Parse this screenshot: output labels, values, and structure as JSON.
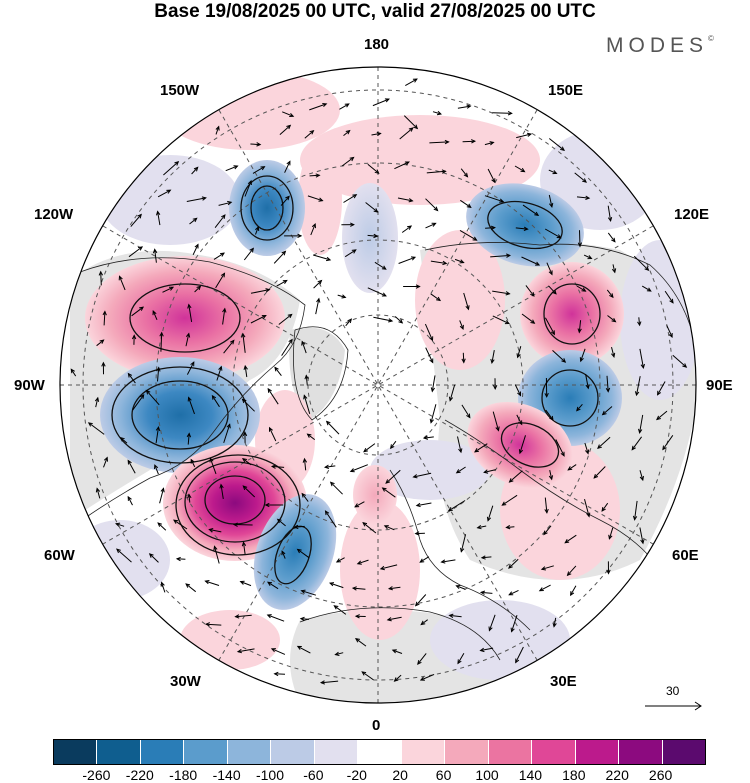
{
  "title": "Base 19/08/2025 00 UTC, valid 27/08/2025 00 UTC",
  "brand": "MODES",
  "brand_mark": "©",
  "longitude_labels": {
    "n180": "180",
    "w150": "150W",
    "e150": "150E",
    "w120": "120W",
    "e120": "120E",
    "w90": "90W",
    "e90": "90E",
    "w60": "60W",
    "e60": "60E",
    "w30": "30W",
    "e30": "30E",
    "s0": "0"
  },
  "reference_vector": {
    "value": "30"
  },
  "colorbar": {
    "colors": [
      "#0a3b5e",
      "#0f5e8f",
      "#2a7db7",
      "#5b9ccc",
      "#8db5db",
      "#bccbe6",
      "#e2e0ef",
      "#ffffff",
      "#fbd5dc",
      "#f4a9bb",
      "#eb74a1",
      "#e04797",
      "#bc1a8c",
      "#8c0a7f",
      "#5b0a6e"
    ],
    "labels": [
      "-260",
      "-220",
      "-180",
      "-140",
      "-100",
      "-60",
      "-20",
      "20",
      "60",
      "100",
      "140",
      "180",
      "220",
      "260"
    ]
  }
}
